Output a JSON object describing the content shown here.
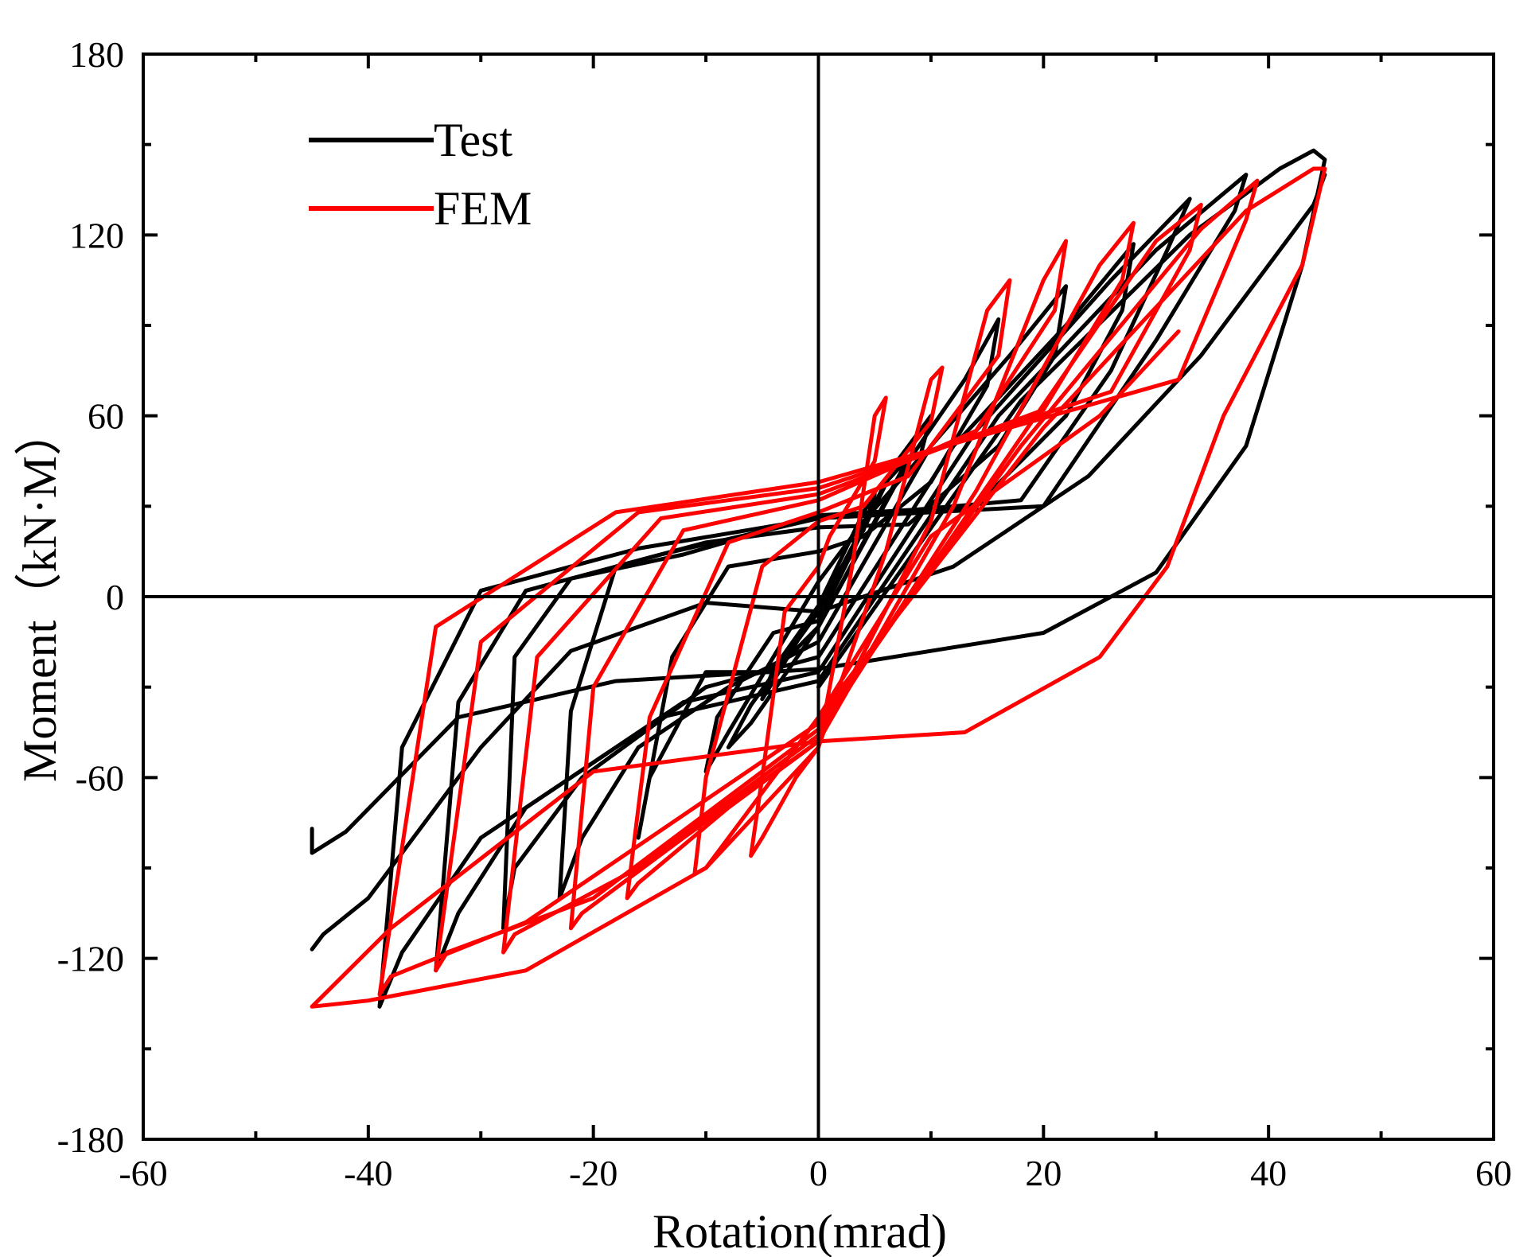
{
  "chart_data": {
    "type": "line",
    "title": "",
    "xlabel": "Rotation(mrad)",
    "ylabel": "Moment（kN·M）",
    "xlim": [
      -60,
      60
    ],
    "ylim": [
      -180,
      180
    ],
    "xticks": [
      -60,
      -40,
      -20,
      0,
      20,
      40,
      60
    ],
    "yticks": [
      -180,
      -120,
      -60,
      0,
      60,
      120,
      180
    ],
    "xtick_labels": [
      "-60",
      "-40",
      "-20",
      "0",
      "20",
      "40",
      "60"
    ],
    "ytick_labels": [
      "-180",
      "-120",
      "-60",
      "0",
      "60",
      "120",
      "180"
    ],
    "minor_ticks": true,
    "zero_lines": true,
    "grid": false,
    "legend_position": "top-left",
    "series": [
      {
        "name": "Test",
        "color": "#000000",
        "loops": [
          [
            [
              0,
              -3
            ],
            [
              4,
              28
            ],
            [
              5,
              34
            ],
            [
              4,
              22
            ],
            [
              0,
              -3
            ],
            [
              -4,
              -28
            ],
            [
              -5,
              -34
            ],
            [
              -4,
              -24
            ],
            [
              0,
              -3
            ]
          ],
          [
            [
              0,
              -5
            ],
            [
              6,
              38
            ],
            [
              8,
              46
            ],
            [
              6,
              32
            ],
            [
              0,
              -10
            ],
            [
              -6,
              -42
            ],
            [
              -8,
              -50
            ],
            [
              -6,
              -36
            ],
            [
              0,
              -5
            ]
          ],
          [
            [
              0,
              -8
            ],
            [
              7,
              45
            ],
            [
              10,
              60
            ],
            [
              9,
              46
            ],
            [
              4,
              25
            ],
            [
              0,
              5
            ],
            [
              -4,
              -20
            ],
            [
              -8,
              -45
            ],
            [
              -10,
              -58
            ],
            [
              -9,
              -40
            ],
            [
              -4,
              -12
            ],
            [
              0,
              -8
            ]
          ],
          [
            [
              0,
              -10
            ],
            [
              8,
              45
            ],
            [
              13,
              72
            ],
            [
              16,
              92
            ],
            [
              15,
              70
            ],
            [
              10,
              38
            ],
            [
              4,
              20
            ],
            [
              0,
              15
            ],
            [
              -8,
              10
            ],
            [
              -13,
              -20
            ],
            [
              -16,
              -80
            ],
            [
              -15,
              -60
            ],
            [
              -10,
              -25
            ],
            [
              -4,
              -25
            ],
            [
              0,
              -10
            ]
          ],
          [
            [
              0,
              -15
            ],
            [
              10,
              50
            ],
            [
              17,
              80
            ],
            [
              22,
              103
            ],
            [
              21,
              80
            ],
            [
              16,
              50
            ],
            [
              8,
              24
            ],
            [
              0,
              23
            ],
            [
              -10,
              18
            ],
            [
              -18,
              10
            ],
            [
              -22,
              -38
            ],
            [
              -23,
              -100
            ],
            [
              -21,
              -80
            ],
            [
              -16,
              -50
            ],
            [
              -8,
              -30
            ],
            [
              0,
              -15
            ]
          ],
          [
            [
              0,
              -20
            ],
            [
              12,
              50
            ],
            [
              22,
              90
            ],
            [
              28,
              117
            ],
            [
              27,
              95
            ],
            [
              22,
              60
            ],
            [
              14,
              30
            ],
            [
              0,
              27
            ],
            [
              -12,
              14
            ],
            [
              -22,
              6
            ],
            [
              -27,
              -20
            ],
            [
              -28,
              -110
            ],
            [
              -27,
              -90
            ],
            [
              -21,
              -60
            ],
            [
              -10,
              -30
            ],
            [
              0,
              -20
            ]
          ],
          [
            [
              0,
              -25
            ],
            [
              14,
              55
            ],
            [
              26,
              105
            ],
            [
              33,
              132
            ],
            [
              31,
              115
            ],
            [
              26,
              75
            ],
            [
              18,
              32
            ],
            [
              0,
              26
            ],
            [
              -14,
              14
            ],
            [
              -26,
              2
            ],
            [
              -32,
              -35
            ],
            [
              -34,
              -124
            ],
            [
              -32,
              -105
            ],
            [
              -26,
              -70
            ],
            [
              -12,
              -35
            ],
            [
              0,
              -25
            ]
          ],
          [
            [
              0,
              -28
            ],
            [
              16,
              60
            ],
            [
              30,
              115
            ],
            [
              38,
              140
            ],
            [
              37,
              128
            ],
            [
              30,
              85
            ],
            [
              20,
              30
            ],
            [
              0,
              26
            ],
            [
              -16,
              16
            ],
            [
              -30,
              2
            ],
            [
              -37,
              -50
            ],
            [
              -39,
              -136
            ],
            [
              -37,
              -118
            ],
            [
              -30,
              -80
            ],
            [
              -14,
              -40
            ],
            [
              0,
              -28
            ]
          ],
          [
            [
              0,
              -30
            ],
            [
              18,
              65
            ],
            [
              33,
              120
            ],
            [
              41,
              142
            ],
            [
              44,
              148
            ],
            [
              45,
              145
            ],
            [
              43,
              110
            ],
            [
              38,
              50
            ],
            [
              30,
              8
            ],
            [
              20,
              -12
            ],
            [
              0,
              -24
            ],
            [
              -18,
              -28
            ],
            [
              -32,
              -40
            ],
            [
              -42,
              -78
            ],
            [
              -45,
              -85
            ],
            [
              -45,
              -77
            ]
          ],
          [
            [
              -45,
              -117
            ],
            [
              -44,
              -112
            ],
            [
              -40,
              -100
            ],
            [
              -30,
              -50
            ],
            [
              -22,
              -18
            ],
            [
              -10,
              -2
            ],
            [
              0,
              -5
            ],
            [
              12,
              10
            ],
            [
              24,
              40
            ],
            [
              34,
              80
            ],
            [
              40,
              110
            ],
            [
              44,
              130
            ],
            [
              45,
              140
            ]
          ]
        ]
      },
      {
        "name": "FEM",
        "color": "#ff0000",
        "loops": [
          [
            [
              0,
              -50
            ],
            [
              3,
              10
            ],
            [
              5,
              60
            ],
            [
              6,
              66
            ],
            [
              5,
              45
            ],
            [
              1,
              20
            ],
            [
              0,
              10
            ],
            [
              -3,
              -5
            ],
            [
              -5,
              -60
            ],
            [
              -6,
              -86
            ],
            [
              -5,
              -80
            ],
            [
              -2,
              -60
            ],
            [
              0,
              -50
            ]
          ],
          [
            [
              0,
              -50
            ],
            [
              6,
              15
            ],
            [
              10,
              72
            ],
            [
              11,
              76
            ],
            [
              10,
              58
            ],
            [
              4,
              30
            ],
            [
              0,
              25
            ],
            [
              -5,
              10
            ],
            [
              -10,
              -60
            ],
            [
              -11,
              -92
            ],
            [
              -10,
              -90
            ],
            [
              -4,
              -66
            ],
            [
              0,
              -50
            ]
          ],
          [
            [
              0,
              -48
            ],
            [
              10,
              25
            ],
            [
              15,
              95
            ],
            [
              17,
              105
            ],
            [
              16,
              80
            ],
            [
              8,
              40
            ],
            [
              0,
              28
            ],
            [
              -8,
              18
            ],
            [
              -15,
              -40
            ],
            [
              -17,
              -100
            ],
            [
              -16,
              -95
            ],
            [
              -8,
              -70
            ],
            [
              0,
              -48
            ]
          ],
          [
            [
              0,
              -48
            ],
            [
              12,
              30
            ],
            [
              20,
              105
            ],
            [
              22,
              118
            ],
            [
              21,
              95
            ],
            [
              14,
              55
            ],
            [
              0,
              32
            ],
            [
              -12,
              22
            ],
            [
              -20,
              -30
            ],
            [
              -22,
              -110
            ],
            [
              -21,
              -105
            ],
            [
              -12,
              -80
            ],
            [
              0,
              -48
            ]
          ],
          [
            [
              0,
              -46
            ],
            [
              14,
              35
            ],
            [
              25,
              110
            ],
            [
              28,
              124
            ],
            [
              27,
              105
            ],
            [
              20,
              62
            ],
            [
              0,
              34
            ],
            [
              -14,
              26
            ],
            [
              -25,
              -20
            ],
            [
              -28,
              -118
            ],
            [
              -27,
              -112
            ],
            [
              -16,
              -90
            ],
            [
              0,
              -46
            ]
          ],
          [
            [
              0,
              -44
            ],
            [
              16,
              42
            ],
            [
              30,
              118
            ],
            [
              34,
              130
            ],
            [
              33,
              115
            ],
            [
              26,
              68
            ],
            [
              0,
              36
            ],
            [
              -16,
              28
            ],
            [
              -30,
              -15
            ],
            [
              -34,
              -124
            ],
            [
              -33,
              -118
            ],
            [
              -20,
              -100
            ],
            [
              0,
              -44
            ]
          ],
          [
            [
              0,
              -42
            ],
            [
              18,
              50
            ],
            [
              34,
              122
            ],
            [
              39,
              138
            ],
            [
              38,
              125
            ],
            [
              32,
              72
            ],
            [
              0,
              38
            ],
            [
              -18,
              28
            ],
            [
              -34,
              -10
            ],
            [
              -39,
              -132
            ],
            [
              -38,
              -126
            ],
            [
              -26,
              -108
            ],
            [
              0,
              -42
            ]
          ],
          [
            [
              0,
              -40
            ],
            [
              20,
              56
            ],
            [
              38,
              128
            ],
            [
              44,
              142
            ],
            [
              45,
              142
            ],
            [
              43,
              110
            ],
            [
              36,
              60
            ],
            [
              31,
              10
            ],
            [
              25,
              -20
            ],
            [
              13,
              -45
            ],
            [
              0,
              -48
            ],
            [
              -20,
              -58
            ],
            [
              -38,
              -110
            ],
            [
              -45,
              -136
            ],
            [
              -40,
              -134
            ],
            [
              -26,
              -124
            ],
            [
              -10,
              -90
            ],
            [
              0,
              -40
            ],
            [
              10,
              20
            ],
            [
              25,
              60
            ],
            [
              32,
              88
            ]
          ]
        ]
      }
    ]
  }
}
